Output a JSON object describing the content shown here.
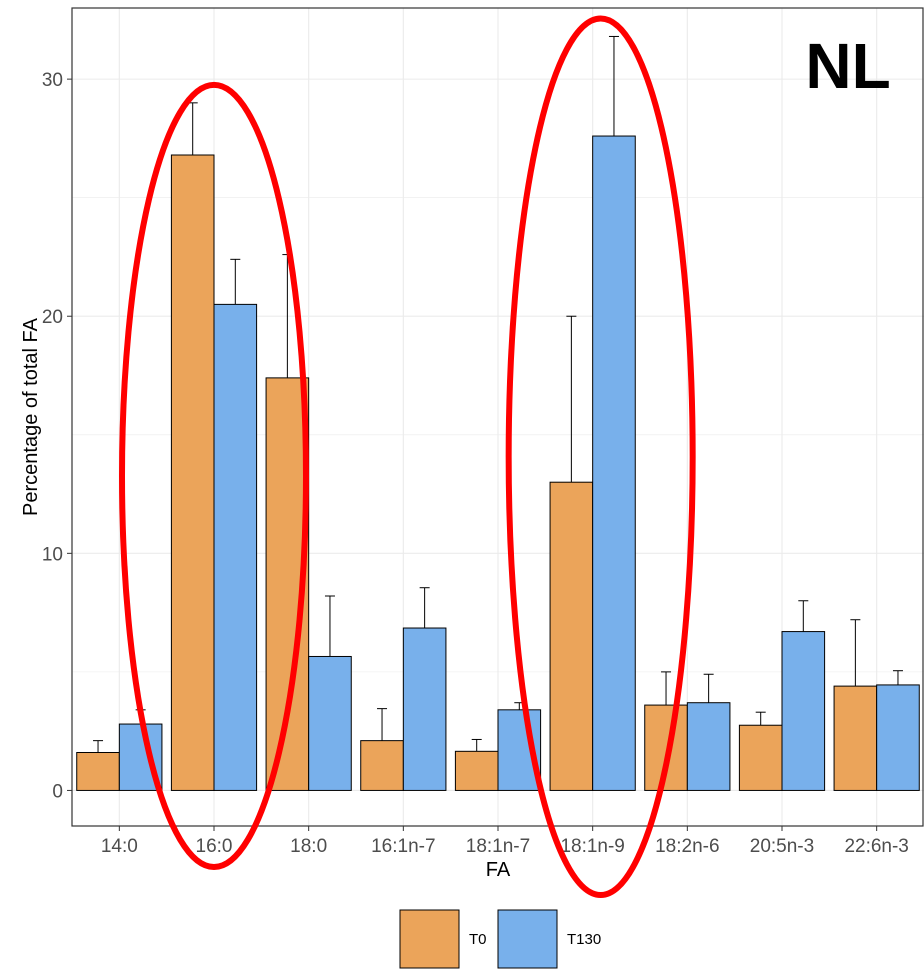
{
  "chart_data": {
    "type": "bar",
    "corner_label": "NL",
    "xlabel": "FA",
    "ylabel": "Percentage of total FA",
    "categories": [
      "14:0",
      "16:0",
      "18:0",
      "16:1n-7",
      "18:1n-7",
      "18:1n-9",
      "18:2n-6",
      "20:5n-3",
      "22:6n-3"
    ],
    "ylim": [
      -1.5,
      33
    ],
    "yticks": [
      0,
      10,
      20,
      30
    ],
    "series": [
      {
        "name": "T0",
        "color": "#EBA45A",
        "values": [
          1.6,
          26.8,
          17.4,
          2.1,
          1.65,
          13.0,
          3.6,
          2.75,
          4.4
        ],
        "errors": [
          0.5,
          2.2,
          5.2,
          1.35,
          0.5,
          7.0,
          1.4,
          0.55,
          2.8
        ]
      },
      {
        "name": "T130",
        "color": "#78B0EB",
        "values": [
          2.8,
          20.5,
          5.65,
          6.85,
          3.4,
          27.6,
          3.7,
          6.7,
          4.45
        ],
        "errors": [
          0.6,
          1.9,
          2.55,
          1.7,
          0.3,
          4.2,
          1.2,
          1.3,
          0.6
        ]
      }
    ],
    "highlight_categories": [
      "16:0",
      "18:1n-9"
    ],
    "highlight_color": "#FF0000",
    "grid": true,
    "legend_position": "bottom"
  }
}
